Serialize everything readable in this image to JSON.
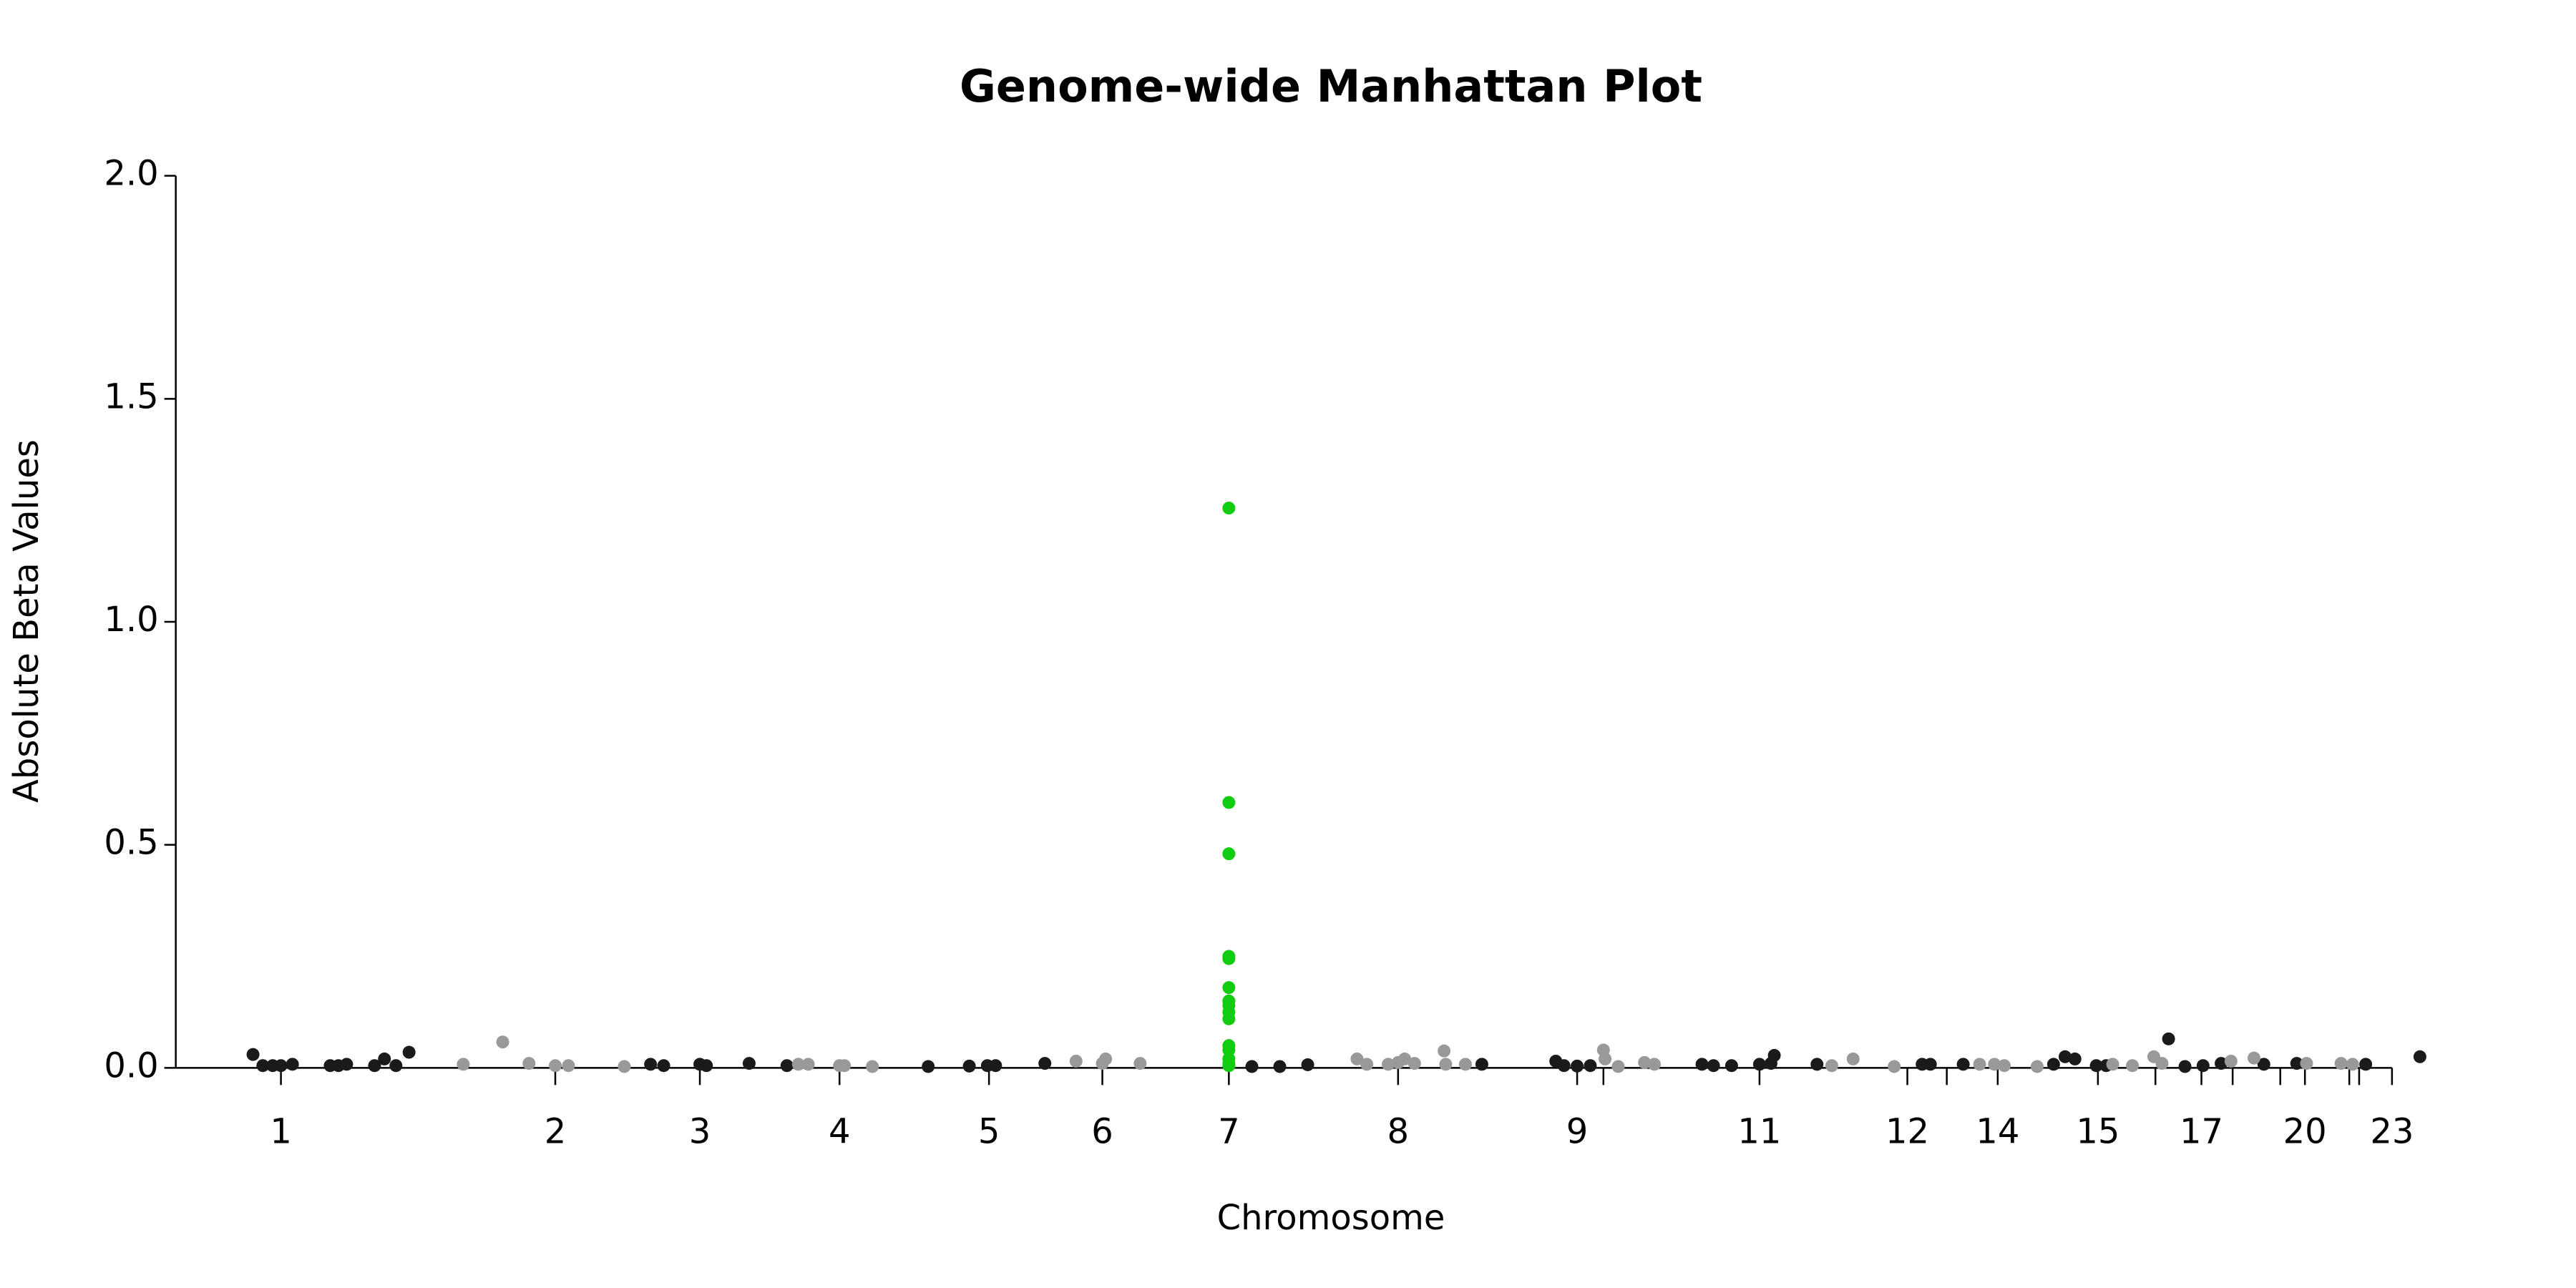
{
  "chart_data": {
    "type": "scatter",
    "title": "Genome-wide Manhattan Plot",
    "xlabel": "Chromosome",
    "ylabel": "Absolute Beta Values",
    "xlim": [
      0,
      1568
    ],
    "ylim": [
      0,
      2.0
    ],
    "yticks": [
      {
        "value": 0,
        "label": "0.0"
      },
      {
        "value": 0.5,
        "label": "0.5"
      },
      {
        "value": 1.0,
        "label": "1.0"
      },
      {
        "value": 1.5,
        "label": "1.5"
      },
      {
        "value": 2.0,
        "label": "2.0"
      }
    ],
    "xticks": [
      {
        "value": 171,
        "label": "1"
      },
      {
        "value": 338,
        "label": "2"
      },
      {
        "value": 426,
        "label": "3"
      },
      {
        "value": 511,
        "label": "4"
      },
      {
        "value": 602,
        "label": "5"
      },
      {
        "value": 671,
        "label": "6"
      },
      {
        "value": 748,
        "label": "7"
      },
      {
        "value": 851,
        "label": "8"
      },
      {
        "value": 960,
        "label": "9"
      },
      {
        "value": 976,
        "label": null
      },
      {
        "value": 1071,
        "label": "11"
      },
      {
        "value": 1161,
        "label": "12"
      },
      {
        "value": 1185,
        "label": null
      },
      {
        "value": 1216,
        "label": "14"
      },
      {
        "value": 1277,
        "label": "15"
      },
      {
        "value": 1312,
        "label": null
      },
      {
        "value": 1340,
        "label": "17"
      },
      {
        "value": 1359,
        "label": null
      },
      {
        "value": 1388,
        "label": null
      },
      {
        "value": 1403,
        "label": "20"
      },
      {
        "value": 1430,
        "label": null
      },
      {
        "value": 1436,
        "label": null
      },
      {
        "value": 1456,
        "label": "23"
      }
    ],
    "series": [
      {
        "color": "#1a1a1a",
        "x": [
          154,
          160,
          166,
          171,
          178,
          201,
          206,
          211,
          228,
          234,
          241,
          249,
          396,
          404,
          426,
          430,
          456,
          479,
          565,
          590,
          601,
          606,
          636,
          762,
          779,
          796,
          902,
          947,
          952,
          960,
          968,
          1036,
          1043,
          1054,
          1071,
          1078,
          1080,
          1106,
          1170,
          1175,
          1195,
          1250,
          1257,
          1263,
          1276,
          1282,
          1320,
          1330,
          1341,
          1352,
          1378,
          1398,
          1440,
          1473
        ],
        "values": [
          0.03,
          0.005,
          0.005,
          0.005,
          0.008,
          0.005,
          0.005,
          0.008,
          0.005,
          0.02,
          0.005,
          0.035,
          0.008,
          0.005,
          0.008,
          0.005,
          0.01,
          0.005,
          0.003,
          0.004,
          0.005,
          0.005,
          0.01,
          0.003,
          0.003,
          0.007,
          0.008,
          0.015,
          0.005,
          0.004,
          0.005,
          0.008,
          0.005,
          0.005,
          0.008,
          0.01,
          0.028,
          0.008,
          0.008,
          0.008,
          0.008,
          0.008,
          0.025,
          0.02,
          0.005,
          0.005,
          0.065,
          0.003,
          0.005,
          0.01,
          0.008,
          0.01,
          0.008,
          0.025
        ]
      },
      {
        "color": "#999999",
        "x": [
          282,
          306,
          322,
          338,
          346,
          380,
          486,
          492,
          511,
          514,
          531,
          655,
          671,
          673,
          694,
          826,
          832,
          845,
          851,
          855,
          861,
          879,
          880,
          892,
          976,
          977,
          985,
          1001,
          1007,
          1115,
          1128,
          1153,
          1205,
          1214,
          1220,
          1240,
          1286,
          1298,
          1311,
          1316,
          1358,
          1372,
          1404,
          1425,
          1432
        ],
        "values": [
          0.008,
          0.058,
          0.01,
          0.005,
          0.005,
          0.003,
          0.008,
          0.008,
          0.005,
          0.005,
          0.003,
          0.015,
          0.01,
          0.02,
          0.01,
          0.02,
          0.008,
          0.008,
          0.012,
          0.02,
          0.01,
          0.038,
          0.008,
          0.008,
          0.04,
          0.02,
          0.003,
          0.012,
          0.008,
          0.005,
          0.02,
          0.003,
          0.008,
          0.008,
          0.005,
          0.003,
          0.008,
          0.005,
          0.025,
          0.01,
          0.015,
          0.022,
          0.01,
          0.01,
          0.008
        ]
      },
      {
        "color": "#11cc11",
        "x": [
          748,
          748,
          748,
          748,
          748,
          748,
          748,
          748,
          748,
          748,
          748,
          748,
          748,
          748,
          748
        ],
        "values": [
          1.255,
          0.595,
          0.48,
          0.25,
          0.245,
          0.18,
          0.15,
          0.14,
          0.125,
          0.11,
          0.05,
          0.04,
          0.02,
          0.01,
          0.005
        ]
      }
    ]
  }
}
